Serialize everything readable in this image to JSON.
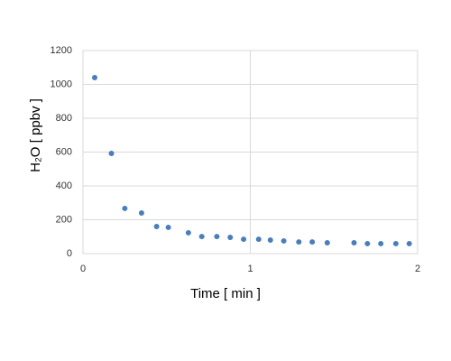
{
  "chart_data": {
    "type": "scatter",
    "x_label": "Time [ min ]",
    "y_label": "H₂O [ ppbv ]",
    "color": "#4a7ebb",
    "grid": true,
    "xlim": [
      0,
      2
    ],
    "xticks": [
      0,
      1,
      2
    ],
    "ylim": [
      0,
      1200
    ],
    "yticks": [
      0,
      200,
      400,
      600,
      800,
      1000,
      1200
    ],
    "x": [
      0.07,
      0.17,
      0.25,
      0.35,
      0.44,
      0.51,
      0.63,
      0.71,
      0.8,
      0.88,
      0.96,
      1.05,
      1.12,
      1.2,
      1.29,
      1.37,
      1.46,
      1.62,
      1.7,
      1.78,
      1.87,
      1.95
    ],
    "values": [
      1040,
      592,
      267,
      240,
      160,
      155,
      123,
      101,
      101,
      96,
      85,
      85,
      80,
      75,
      69,
      69,
      64,
      64,
      59,
      59,
      59,
      59
    ]
  }
}
